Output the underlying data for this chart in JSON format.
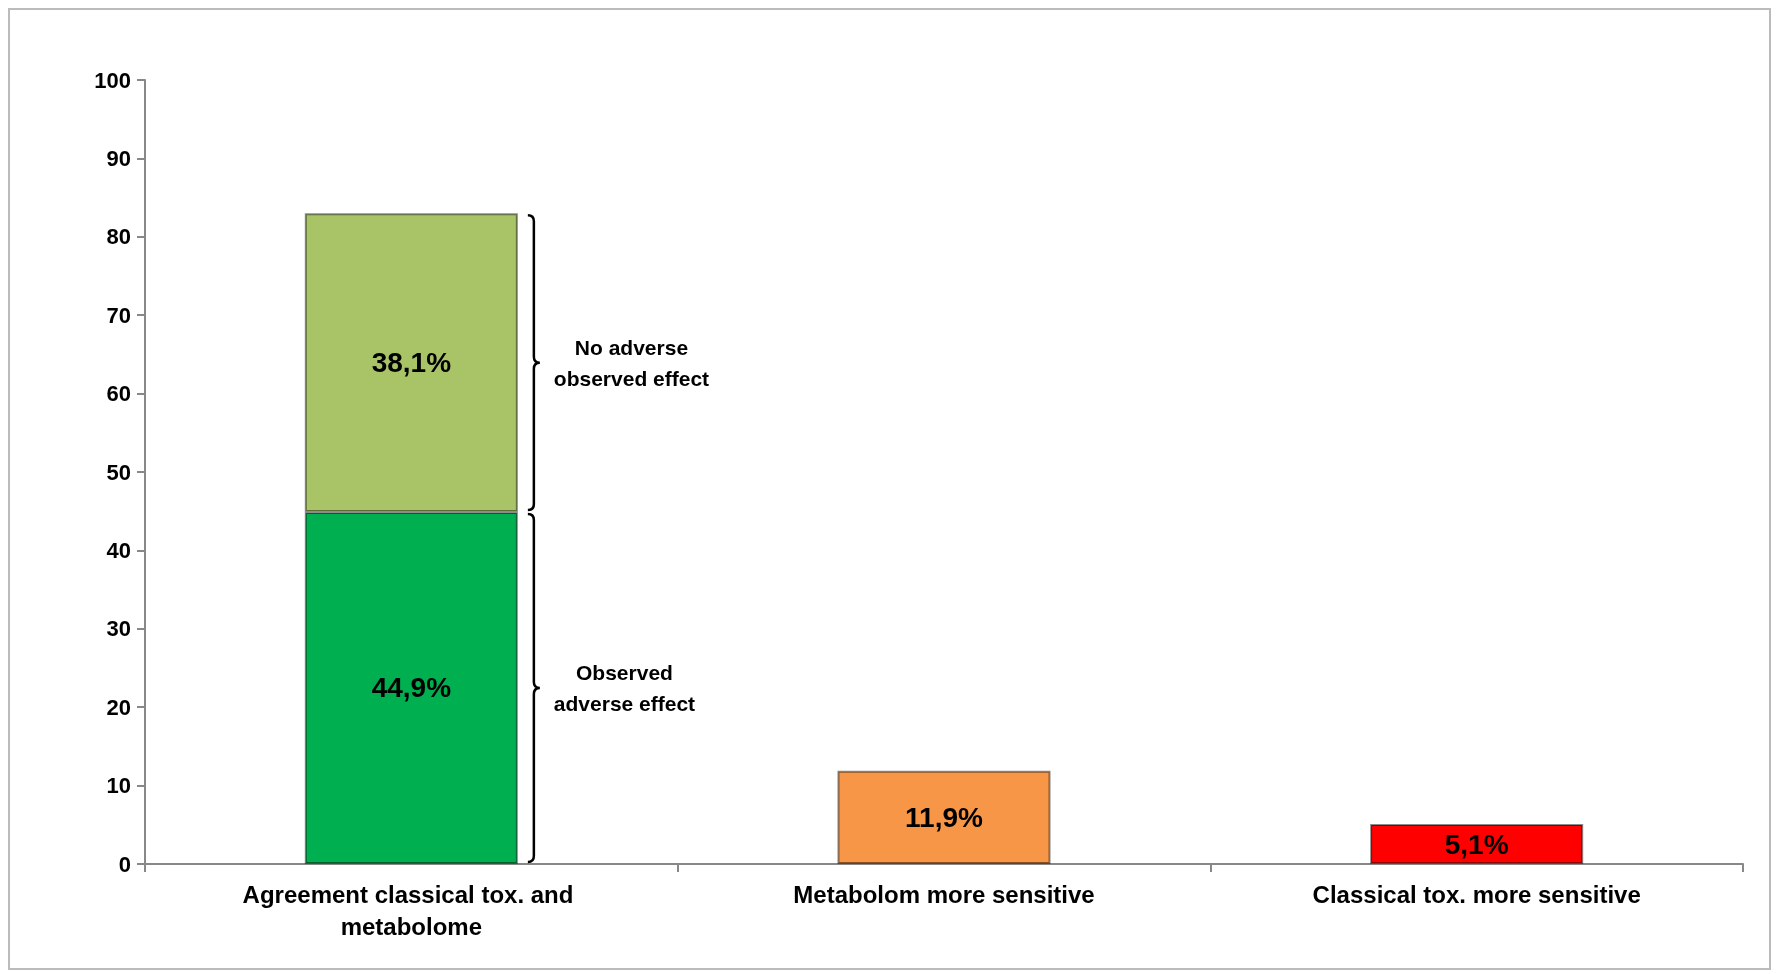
{
  "chart_data": {
    "type": "bar",
    "stacked": true,
    "categories": [
      "Agreement classical tox. and metabolome",
      "Metabolom more sensitive",
      "Classical tox. more sensitive"
    ],
    "series": [
      {
        "colors": [
          "#00b050",
          "#f79646",
          "#ff0000"
        ],
        "values": [
          44.9,
          11.9,
          5.1
        ],
        "value_labels": [
          "44,9%",
          "11,9%",
          "5,1%"
        ]
      },
      {
        "color": "#a9c466",
        "values": [
          38.1,
          null,
          null
        ],
        "value_labels": [
          "38,1%",
          null,
          null
        ]
      }
    ],
    "ylim": [
      0,
      100
    ],
    "yticks": [
      0,
      10,
      20,
      30,
      40,
      50,
      60,
      70,
      80,
      90,
      100
    ],
    "grid": false,
    "annotations": [
      "Observed adverse effect",
      "No adverse observed effect"
    ]
  }
}
